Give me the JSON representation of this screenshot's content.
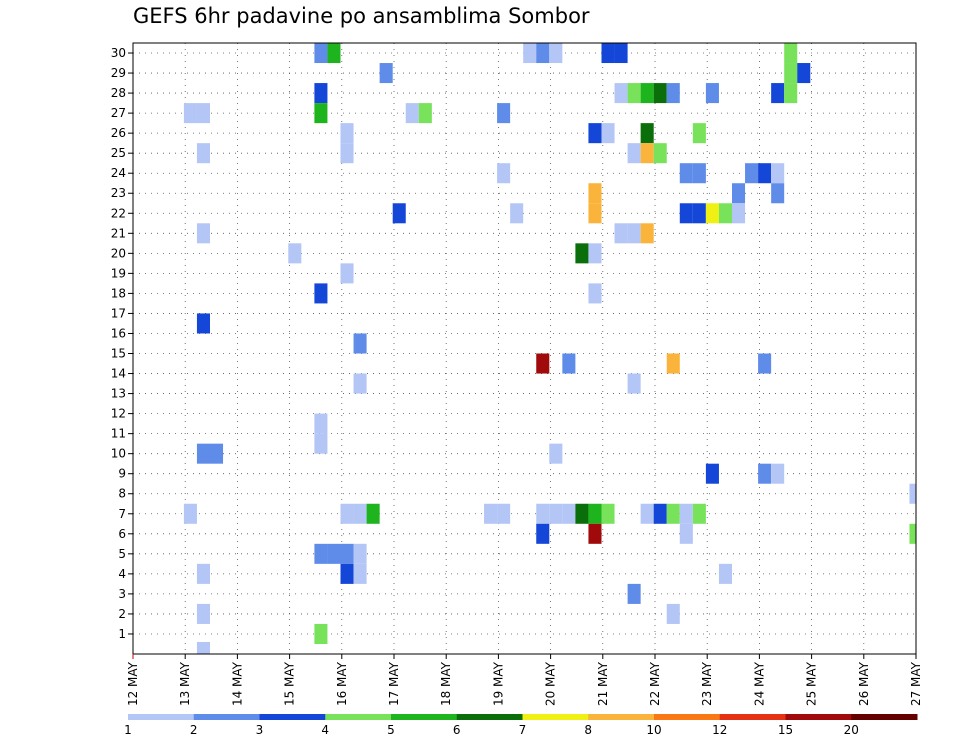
{
  "chart_data": {
    "type": "heatmap",
    "title": "GEFS 6hr padavine po ansamblima Sombor",
    "x_ticks": [
      "12 MAY",
      "13 MAY",
      "14 MAY",
      "15 MAY",
      "16 MAY",
      "17 MAY",
      "18 MAY",
      "19 MAY",
      "20 MAY",
      "21 MAY",
      "22 MAY",
      "23 MAY",
      "24 MAY",
      "25 MAY",
      "26 MAY",
      "27 MAY"
    ],
    "y_ticks": [
      "1",
      "2",
      "3",
      "4",
      "5",
      "6",
      "7",
      "8",
      "9",
      "10",
      "11",
      "12",
      "13",
      "14",
      "15",
      "16",
      "17",
      "18",
      "19",
      "20",
      "21",
      "22",
      "23",
      "24",
      "25",
      "26",
      "27",
      "28",
      "29",
      "30"
    ],
    "color_scale": {
      "colors": [
        "#b4c6f5",
        "#5f8ce8",
        "#1446d8",
        "#78e25a",
        "#1eb41e",
        "#0a6e0a",
        "#f0f014",
        "#fab43c",
        "#fa7814",
        "#e63214",
        "#a00a0a",
        "#640000"
      ],
      "labels": [
        "1",
        "2",
        "3",
        "4",
        "5",
        "6",
        "7",
        "8",
        "10",
        "12",
        "15",
        "20"
      ]
    },
    "grid": "dotted",
    "cells": [
      {
        "x": 15.6,
        "y": 30,
        "class": 2
      },
      {
        "x": 15.85,
        "y": 30,
        "class": 5
      },
      {
        "x": 19.6,
        "y": 30,
        "class": 1
      },
      {
        "x": 19.85,
        "y": 30,
        "class": 2
      },
      {
        "x": 20.1,
        "y": 30,
        "class": 1
      },
      {
        "x": 21.1,
        "y": 30,
        "class": 3
      },
      {
        "x": 21.35,
        "y": 30,
        "class": 3
      },
      {
        "x": 24.6,
        "y": 30,
        "class": 4
      },
      {
        "x": 16.85,
        "y": 29,
        "class": 2
      },
      {
        "x": 24.6,
        "y": 29,
        "class": 4
      },
      {
        "x": 24.85,
        "y": 29,
        "class": 3
      },
      {
        "x": 15.6,
        "y": 28,
        "class": 3
      },
      {
        "x": 21.35,
        "y": 28,
        "class": 1
      },
      {
        "x": 21.6,
        "y": 28,
        "class": 4
      },
      {
        "x": 21.85,
        "y": 28,
        "class": 5
      },
      {
        "x": 22.1,
        "y": 28,
        "class": 6
      },
      {
        "x": 22.35,
        "y": 28,
        "class": 2
      },
      {
        "x": 23.1,
        "y": 28,
        "class": 2
      },
      {
        "x": 24.35,
        "y": 28,
        "class": 3
      },
      {
        "x": 24.6,
        "y": 28,
        "class": 4
      },
      {
        "x": 13.1,
        "y": 27,
        "class": 1
      },
      {
        "x": 13.35,
        "y": 27,
        "class": 1
      },
      {
        "x": 15.6,
        "y": 27,
        "class": 5
      },
      {
        "x": 17.35,
        "y": 27,
        "class": 1
      },
      {
        "x": 17.6,
        "y": 27,
        "class": 4
      },
      {
        "x": 19.1,
        "y": 27,
        "class": 2
      },
      {
        "x": 16.1,
        "y": 26,
        "class": 1
      },
      {
        "x": 20.85,
        "y": 26,
        "class": 3
      },
      {
        "x": 21.1,
        "y": 26,
        "class": 1
      },
      {
        "x": 21.85,
        "y": 26,
        "class": 6
      },
      {
        "x": 22.85,
        "y": 26,
        "class": 4
      },
      {
        "x": 13.35,
        "y": 25,
        "class": 1
      },
      {
        "x": 16.1,
        "y": 25,
        "class": 1
      },
      {
        "x": 21.6,
        "y": 25,
        "class": 1
      },
      {
        "x": 21.85,
        "y": 25,
        "class": 8
      },
      {
        "x": 22.1,
        "y": 25,
        "class": 4
      },
      {
        "x": 19.1,
        "y": 24,
        "class": 1
      },
      {
        "x": 22.6,
        "y": 24,
        "class": 2
      },
      {
        "x": 22.85,
        "y": 24,
        "class": 2
      },
      {
        "x": 23.85,
        "y": 24,
        "class": 2
      },
      {
        "x": 24.1,
        "y": 24,
        "class": 3
      },
      {
        "x": 24.35,
        "y": 24,
        "class": 1
      },
      {
        "x": 20.85,
        "y": 23,
        "class": 8
      },
      {
        "x": 23.6,
        "y": 23,
        "class": 2
      },
      {
        "x": 24.35,
        "y": 23,
        "class": 2
      },
      {
        "x": 17.1,
        "y": 22,
        "class": 3
      },
      {
        "x": 19.35,
        "y": 22,
        "class": 1
      },
      {
        "x": 20.85,
        "y": 22,
        "class": 8
      },
      {
        "x": 22.6,
        "y": 22,
        "class": 3
      },
      {
        "x": 22.85,
        "y": 22,
        "class": 3
      },
      {
        "x": 23.1,
        "y": 22,
        "class": 7
      },
      {
        "x": 23.35,
        "y": 22,
        "class": 4
      },
      {
        "x": 23.6,
        "y": 22,
        "class": 1
      },
      {
        "x": 13.35,
        "y": 21,
        "class": 1
      },
      {
        "x": 21.35,
        "y": 21,
        "class": 1
      },
      {
        "x": 21.6,
        "y": 21,
        "class": 1
      },
      {
        "x": 21.85,
        "y": 21,
        "class": 8
      },
      {
        "x": 15.1,
        "y": 20,
        "class": 1
      },
      {
        "x": 20.6,
        "y": 20,
        "class": 6
      },
      {
        "x": 20.85,
        "y": 20,
        "class": 1
      },
      {
        "x": 16.1,
        "y": 19,
        "class": 1
      },
      {
        "x": 15.6,
        "y": 18,
        "class": 3
      },
      {
        "x": 20.85,
        "y": 18,
        "class": 1
      },
      {
        "x": 13.35,
        "y": 16.5,
        "class": 3
      },
      {
        "x": 16.35,
        "y": 15.5,
        "class": 2
      },
      {
        "x": 19.85,
        "y": 14.5,
        "class": 11
      },
      {
        "x": 20.35,
        "y": 14.5,
        "class": 2
      },
      {
        "x": 22.35,
        "y": 14.5,
        "class": 8
      },
      {
        "x": 24.1,
        "y": 14.5,
        "class": 2
      },
      {
        "x": 16.35,
        "y": 13.5,
        "class": 1
      },
      {
        "x": 21.6,
        "y": 13.5,
        "class": 1
      },
      {
        "x": 15.6,
        "y": 11.5,
        "class": 1
      },
      {
        "x": 15.6,
        "y": 10.5,
        "class": 1
      },
      {
        "x": 13.35,
        "y": 10,
        "class": 2
      },
      {
        "x": 13.6,
        "y": 10,
        "class": 2
      },
      {
        "x": 20.1,
        "y": 10,
        "class": 1
      },
      {
        "x": 23.1,
        "y": 9,
        "class": 3
      },
      {
        "x": 24.1,
        "y": 9,
        "class": 2
      },
      {
        "x": 24.35,
        "y": 9,
        "class": 1
      },
      {
        "x": 27.0,
        "y": 8,
        "class": 1
      },
      {
        "x": 13.1,
        "y": 7,
        "class": 1
      },
      {
        "x": 16.1,
        "y": 7,
        "class": 1
      },
      {
        "x": 16.35,
        "y": 7,
        "class": 1
      },
      {
        "x": 16.6,
        "y": 7,
        "class": 5
      },
      {
        "x": 18.85,
        "y": 7,
        "class": 1
      },
      {
        "x": 19.1,
        "y": 7,
        "class": 1
      },
      {
        "x": 19.85,
        "y": 7,
        "class": 1
      },
      {
        "x": 20.1,
        "y": 7,
        "class": 1
      },
      {
        "x": 20.35,
        "y": 7,
        "class": 1
      },
      {
        "x": 20.6,
        "y": 7,
        "class": 6
      },
      {
        "x": 20.85,
        "y": 7,
        "class": 5
      },
      {
        "x": 21.1,
        "y": 7,
        "class": 4
      },
      {
        "x": 21.85,
        "y": 7,
        "class": 1
      },
      {
        "x": 22.1,
        "y": 7,
        "class": 3
      },
      {
        "x": 22.35,
        "y": 7,
        "class": 4
      },
      {
        "x": 22.6,
        "y": 7,
        "class": 1
      },
      {
        "x": 22.85,
        "y": 7,
        "class": 4
      },
      {
        "x": 19.85,
        "y": 6,
        "class": 3
      },
      {
        "x": 20.85,
        "y": 6,
        "class": 11
      },
      {
        "x": 22.6,
        "y": 6,
        "class": 1
      },
      {
        "x": 27.0,
        "y": 6,
        "class": 4
      },
      {
        "x": 15.6,
        "y": 5,
        "class": 2
      },
      {
        "x": 15.85,
        "y": 5,
        "class": 2
      },
      {
        "x": 16.1,
        "y": 5,
        "class": 2
      },
      {
        "x": 16.35,
        "y": 5,
        "class": 1
      },
      {
        "x": 13.35,
        "y": 4,
        "class": 1
      },
      {
        "x": 16.1,
        "y": 4,
        "class": 3
      },
      {
        "x": 16.35,
        "y": 4,
        "class": 1
      },
      {
        "x": 23.35,
        "y": 4,
        "class": 1
      },
      {
        "x": 21.6,
        "y": 3,
        "class": 2
      },
      {
        "x": 13.35,
        "y": 2,
        "class": 1
      },
      {
        "x": 22.35,
        "y": 2,
        "class": 1
      },
      {
        "x": 15.6,
        "y": 1,
        "class": 4
      },
      {
        "x": 13.35,
        "y": 0.1,
        "class": 1
      }
    ]
  }
}
